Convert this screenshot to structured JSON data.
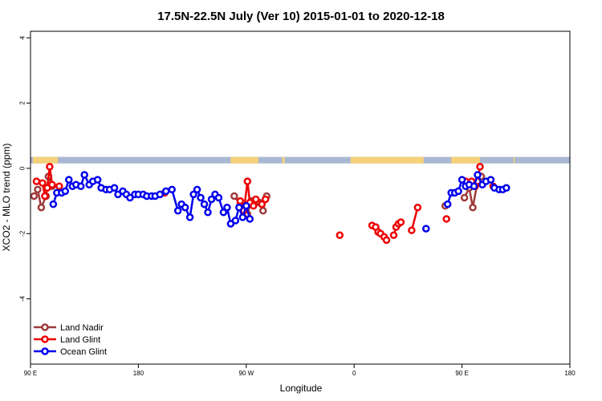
{
  "chart_data": {
    "type": "line",
    "title": "17.5N-22.5N July (Ver 10)   2015-01-01 to 2020-12-18",
    "xlabel": "Longitude",
    "ylabel": "XCO2 - MLO trend (ppm)",
    "xlim": [
      90,
      450
    ],
    "ylim": [
      -6,
      4.2
    ],
    "x_ticks": [
      {
        "value": 90,
        "label": "90 E"
      },
      {
        "value": 180,
        "label": "180"
      },
      {
        "value": 270,
        "label": "90 W"
      },
      {
        "value": 360,
        "label": "0"
      },
      {
        "value": 450,
        "label": "90 E"
      },
      {
        "value": 540,
        "label": "180"
      }
    ],
    "y_ticks": [
      {
        "value": 4,
        "label": "4"
      },
      {
        "value": 2,
        "label": "2"
      },
      {
        "value": 0,
        "label": "0"
      },
      {
        "value": -2,
        "label": "-2"
      },
      {
        "value": -4,
        "label": "-4"
      }
    ],
    "x_view": [
      90,
      540
    ],
    "legend_position": "bottom-left",
    "land_mask": {
      "y_range": [
        0.15,
        0.35
      ],
      "ocean_color": "#a8b8d0",
      "land_color": "#f5d27a",
      "land_segments": [
        [
          92,
          113
        ],
        [
          257,
          280
        ],
        [
          300,
          302
        ],
        [
          357,
          418
        ],
        [
          441,
          465
        ],
        [
          493,
          494
        ]
      ]
    },
    "series": [
      {
        "name": "Land Nadir",
        "color": "#9e3a3a",
        "segments": [
          [
            [
              93,
              -0.85
            ],
            [
              96,
              -0.65
            ],
            [
              99,
              -1.2
            ],
            [
              103,
              -0.85
            ],
            [
              105,
              -0.25
            ],
            [
              108,
              -0.55
            ]
          ],
          [
            [
              260,
              -0.85
            ],
            [
              265,
              -1.1
            ],
            [
              268,
              -1.2
            ],
            [
              271,
              -1.4
            ],
            [
              274,
              -1.0
            ],
            [
              281,
              -1.05
            ],
            [
              284,
              -1.3
            ],
            [
              287,
              -0.85
            ]
          ],
          [
            [
              436,
              -1.15
            ]
          ],
          [
            [
              452,
              -0.9
            ],
            [
              456,
              -0.6
            ],
            [
              459,
              -1.2
            ],
            [
              463,
              -0.4
            ],
            [
              466,
              -0.25
            ]
          ]
        ]
      },
      {
        "name": "Land Glint",
        "color": "#ee0000",
        "segments": [
          [
            [
              95,
              -0.4
            ],
            [
              100,
              -0.45
            ],
            [
              102,
              -0.85
            ],
            [
              104,
              -0.6
            ],
            [
              106,
              0.05
            ],
            [
              108,
              -0.5
            ],
            [
              114,
              -0.55
            ]
          ],
          [
            [
              202,
              -0.75
            ]
          ],
          [
            [
              265,
              -1.0
            ],
            [
              268,
              -1.3
            ],
            [
              271,
              -0.4
            ],
            [
              273,
              -1.05
            ],
            [
              276,
              -1.15
            ],
            [
              278,
              -0.95
            ],
            [
              283,
              -1.1
            ],
            [
              286,
              -0.95
            ]
          ],
          [
            [
              348,
              -2.05
            ]
          ],
          [
            [
              375,
              -1.75
            ],
            [
              378,
              -1.8
            ],
            [
              380,
              -1.95
            ],
            [
              382,
              -2.0
            ],
            [
              385,
              -2.1
            ],
            [
              387,
              -2.2
            ]
          ],
          [
            [
              393,
              -2.05
            ],
            [
              395,
              -1.8
            ],
            [
              397,
              -1.7
            ],
            [
              399,
              -1.65
            ]
          ],
          [
            [
              408,
              -1.9
            ],
            [
              413,
              -1.2
            ]
          ],
          [
            [
              437,
              -1.55
            ]
          ],
          [
            [
              453,
              -0.4
            ],
            [
              458,
              -0.4
            ],
            [
              461,
              -0.55
            ],
            [
              463,
              -0.4
            ],
            [
              465,
              0.05
            ]
          ],
          [
            [
              476,
              -0.55
            ]
          ]
        ]
      },
      {
        "name": "Ocean Glint",
        "color": "#0000ee",
        "segments": [
          [
            [
              109,
              -1.1
            ],
            [
              112,
              -0.75
            ],
            [
              116,
              -0.75
            ],
            [
              119,
              -0.7
            ],
            [
              122,
              -0.35
            ],
            [
              125,
              -0.55
            ],
            [
              128,
              -0.5
            ],
            [
              132,
              -0.55
            ],
            [
              135,
              -0.2
            ],
            [
              139,
              -0.5
            ],
            [
              142,
              -0.4
            ],
            [
              146,
              -0.35
            ],
            [
              149,
              -0.6
            ],
            [
              153,
              -0.65
            ],
            [
              156,
              -0.65
            ],
            [
              160,
              -0.6
            ],
            [
              163,
              -0.8
            ],
            [
              167,
              -0.7
            ],
            [
              170,
              -0.8
            ],
            [
              173,
              -0.9
            ],
            [
              177,
              -0.8
            ],
            [
              180,
              -0.8
            ],
            [
              184,
              -0.8
            ],
            [
              187,
              -0.85
            ],
            [
              191,
              -0.85
            ],
            [
              194,
              -0.85
            ],
            [
              198,
              -0.8
            ],
            [
              203,
              -0.7
            ],
            [
              208,
              -0.65
            ],
            [
              213,
              -1.3
            ],
            [
              216,
              -1.1
            ],
            [
              219,
              -1.2
            ],
            [
              223,
              -1.5
            ],
            [
              226,
              -0.8
            ],
            [
              229,
              -0.65
            ],
            [
              232,
              -0.9
            ],
            [
              235,
              -1.1
            ],
            [
              238,
              -1.35
            ],
            [
              241,
              -0.95
            ],
            [
              244,
              -0.8
            ],
            [
              247,
              -0.9
            ],
            [
              251,
              -1.35
            ],
            [
              254,
              -1.2
            ],
            [
              257,
              -1.7
            ],
            [
              261,
              -1.6
            ],
            [
              264,
              -1.2
            ],
            [
              267,
              -1.5
            ],
            [
              270,
              -1.15
            ],
            [
              273,
              -1.55
            ]
          ],
          [
            [
              420,
              -1.85
            ]
          ],
          [
            [
              438,
              -1.1
            ],
            [
              441,
              -0.75
            ],
            [
              444,
              -0.75
            ],
            [
              447,
              -0.7
            ],
            [
              450,
              -0.35
            ],
            [
              453,
              -0.55
            ],
            [
              456,
              -0.5
            ],
            [
              460,
              -0.55
            ],
            [
              463,
              -0.2
            ],
            [
              467,
              -0.5
            ],
            [
              470,
              -0.4
            ],
            [
              474,
              -0.35
            ],
            [
              477,
              -0.6
            ],
            [
              481,
              -0.65
            ],
            [
              484,
              -0.65
            ],
            [
              487,
              -0.6
            ]
          ]
        ]
      }
    ]
  }
}
